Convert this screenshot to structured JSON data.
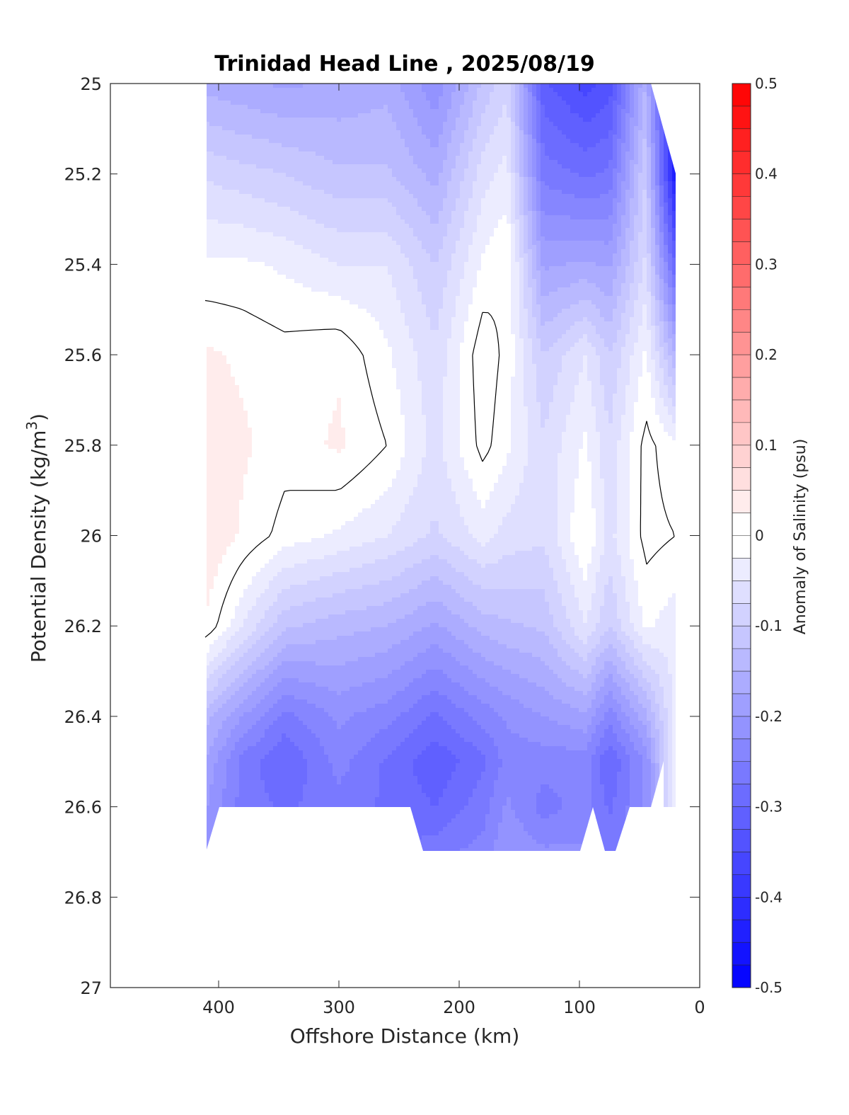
{
  "chart_data": {
    "type": "heatmap",
    "title": "Trinidad Head Line , 2025/08/19",
    "xlabel": "Offshore Distance (km)",
    "ylabel_main": "Potential Density (kg/m",
    "ylabel_sup": "3",
    "ylabel_close": ")",
    "colorbar_label": "Anomaly of Salinity (psu)",
    "x_axis": {
      "range": [
        490,
        0
      ],
      "reversed": true,
      "ticks": [
        400,
        300,
        200,
        100,
        0
      ],
      "tick_labels": [
        "400",
        "300",
        "200",
        "100",
        "0"
      ]
    },
    "y_axis": {
      "range": [
        25,
        27
      ],
      "reversed": true,
      "ticks": [
        25,
        25.2,
        25.4,
        25.6,
        25.8,
        26,
        26.2,
        26.4,
        26.6,
        26.8,
        27
      ],
      "tick_labels": [
        "25",
        "25.2",
        "25.4",
        "25.6",
        "25.8",
        "26",
        "26.2",
        "26.4",
        "26.6",
        "26.8",
        "27"
      ]
    },
    "colorbar": {
      "range": [
        -0.5,
        0.5
      ],
      "levels": 40,
      "ticks": [
        0.5,
        0.4,
        0.3,
        0.2,
        0.1,
        0,
        -0.1,
        -0.2,
        -0.3,
        -0.4,
        -0.5
      ],
      "tick_labels": [
        "0.5",
        "0.4",
        "0.3",
        "0.2",
        "0.1",
        "0",
        "-0.1",
        "-0.2",
        "-0.3",
        "-0.4",
        "-0.5"
      ],
      "negative_color": "#0000ff",
      "positive_color": "#ff0000",
      "zero_color": "#ffffff"
    },
    "sigma_grid": [
      25.0,
      25.2,
      25.4,
      25.6,
      25.8,
      26.0,
      26.2,
      26.4,
      26.5,
      26.6,
      26.7
    ],
    "stations": [
      {
        "x": 410,
        "values": [
          -0.16,
          -0.08,
          -0.02,
          0.03,
          0.04,
          0.05,
          0.02,
          -0.14,
          -0.18,
          -0.2,
          -0.22
        ]
      },
      {
        "x": 380,
        "values": [
          -0.17,
          -0.09,
          -0.02,
          0.02,
          0.03,
          0.02,
          -0.05,
          -0.2,
          -0.26,
          -0.26,
          null
        ]
      },
      {
        "x": 345,
        "values": [
          -0.18,
          -0.1,
          -0.03,
          0.01,
          0.01,
          -0.01,
          -0.12,
          -0.26,
          -0.3,
          -0.28,
          null
        ]
      },
      {
        "x": 300,
        "values": [
          -0.17,
          -0.12,
          -0.05,
          0.02,
          0.03,
          -0.03,
          -0.14,
          -0.22,
          -0.24,
          -0.26,
          null
        ]
      },
      {
        "x": 260,
        "values": [
          -0.16,
          -0.12,
          -0.05,
          -0.02,
          0.0,
          -0.05,
          -0.15,
          -0.24,
          -0.28,
          -0.28,
          null
        ]
      },
      {
        "x": 220,
        "values": [
          -0.22,
          -0.16,
          -0.1,
          -0.07,
          -0.06,
          -0.08,
          -0.18,
          -0.28,
          -0.32,
          -0.3,
          -0.26
        ]
      },
      {
        "x": 180,
        "values": [
          -0.12,
          -0.06,
          -0.02,
          0.02,
          0.01,
          -0.04,
          -0.14,
          -0.24,
          -0.28,
          -0.26,
          -0.24
        ]
      },
      {
        "x": 160,
        "values": [
          -0.08,
          -0.04,
          0.0,
          -0.01,
          -0.02,
          -0.06,
          -0.13,
          -0.22,
          -0.24,
          -0.22,
          -0.2
        ]
      },
      {
        "x": 130,
        "values": [
          -0.32,
          -0.26,
          -0.18,
          -0.1,
          -0.07,
          -0.07,
          -0.12,
          -0.2,
          -0.24,
          -0.26,
          -0.22
        ]
      },
      {
        "x": 95,
        "values": [
          -0.36,
          -0.28,
          -0.17,
          -0.05,
          -0.02,
          0.0,
          -0.05,
          -0.18,
          -0.24,
          -0.24,
          -0.22
        ]
      },
      {
        "x": 75,
        "values": [
          -0.34,
          -0.27,
          -0.18,
          -0.1,
          -0.07,
          -0.06,
          -0.1,
          -0.24,
          -0.3,
          -0.28,
          -0.26
        ]
      },
      {
        "x": 45,
        "values": [
          -0.15,
          -0.1,
          -0.07,
          -0.02,
          0.01,
          0.01,
          -0.02,
          -0.16,
          -0.22,
          -0.22,
          null
        ]
      },
      {
        "x": 20,
        "values": [
          null,
          -0.45,
          -0.3,
          -0.15,
          -0.02,
          0.0,
          -0.04,
          null,
          null,
          null,
          null
        ]
      }
    ],
    "contour_level": 0,
    "contour_color": "#000000"
  }
}
